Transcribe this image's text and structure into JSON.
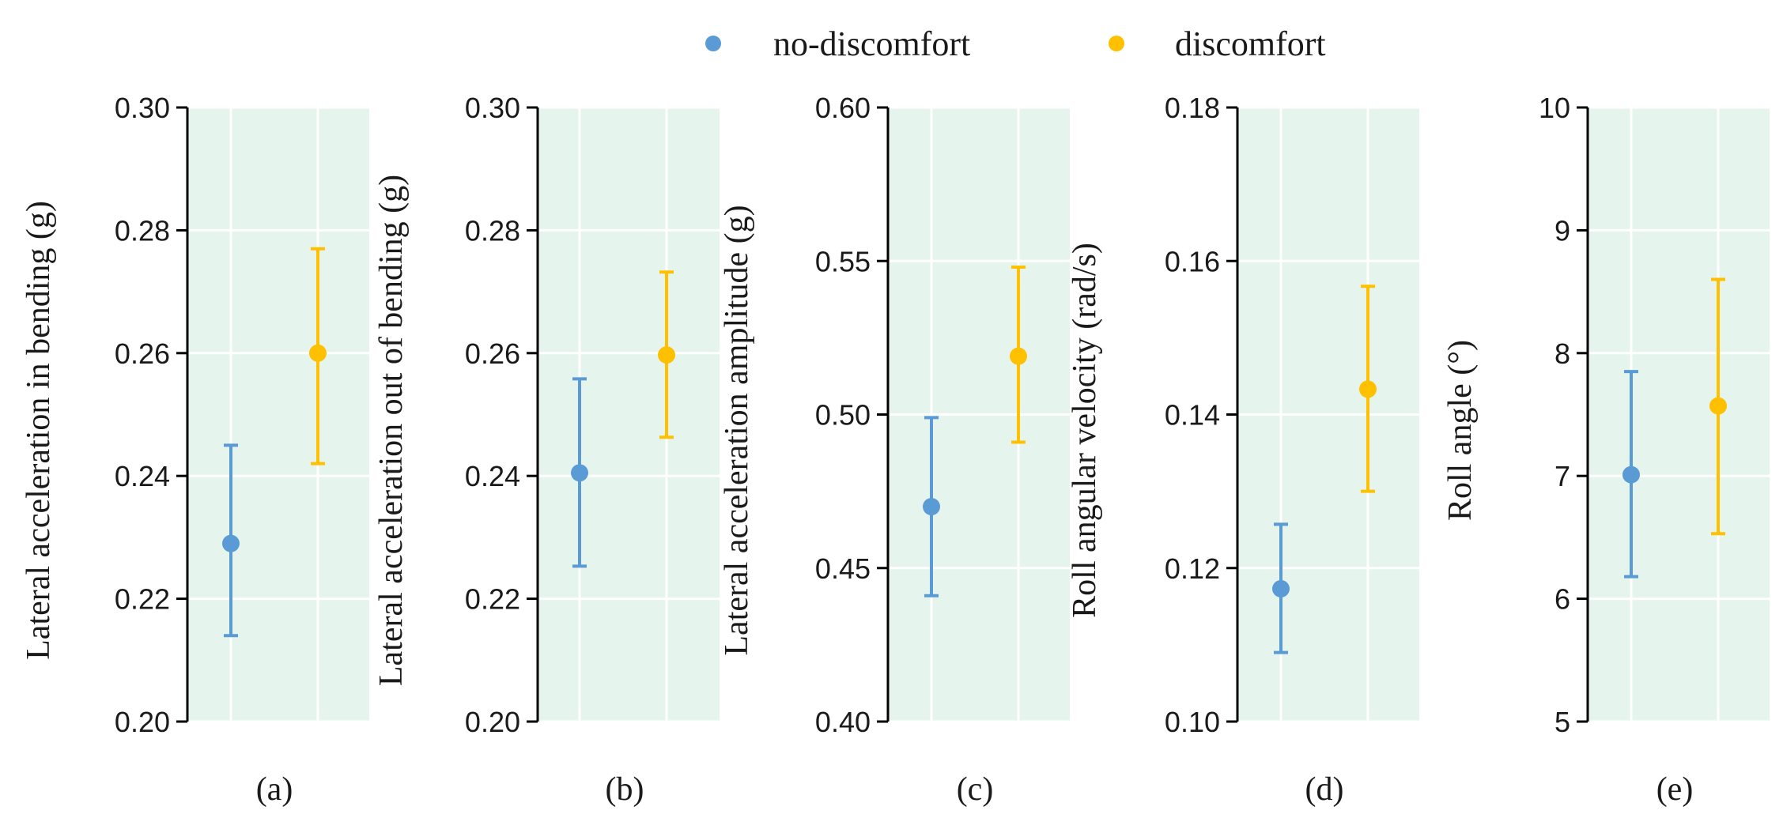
{
  "legend": {
    "position": "top-center",
    "items": [
      {
        "label": "no-discomfort",
        "color": "#5b9bd5"
      },
      {
        "label": "discomfort",
        "color": "#ffc000"
      }
    ]
  },
  "colors": {
    "panel_bg": "#e6f4ee",
    "grid": "#ffffff",
    "axis": "#000000"
  },
  "chart_data": [
    {
      "type": "scatter",
      "panel_label": "(a)",
      "ylabel": "Lateral acceleration in bending (g)",
      "ylim": [
        0.2,
        0.3
      ],
      "yticks": [
        "0.20",
        "0.22",
        "0.24",
        "0.26",
        "0.28",
        "0.30"
      ],
      "grid": true,
      "categories": [
        "no-discomfort",
        "discomfort"
      ],
      "means": [
        0.229,
        0.26
      ],
      "lower": [
        0.214,
        0.242
      ],
      "upper": [
        0.245,
        0.277
      ]
    },
    {
      "type": "scatter",
      "panel_label": "(b)",
      "ylabel": "Lateral acceleration out of bending (g)",
      "ylim": [
        0.2,
        0.3
      ],
      "yticks": [
        "0.20",
        "0.22",
        "0.24",
        "0.26",
        "0.28",
        "0.30"
      ],
      "grid": true,
      "categories": [
        "no-discomfort",
        "discomfort"
      ],
      "means": [
        0.2405,
        0.2597
      ],
      "lower": [
        0.2253,
        0.2463
      ],
      "upper": [
        0.2558,
        0.2732
      ]
    },
    {
      "type": "scatter",
      "panel_label": "(c)",
      "ylabel": "Lateral acceleration amplitude (g)",
      "ylim": [
        0.4,
        0.6
      ],
      "yticks": [
        "0.40",
        "0.45",
        "0.50",
        "0.55",
        "0.60"
      ],
      "grid": true,
      "categories": [
        "no-discomfort",
        "discomfort"
      ],
      "means": [
        0.47,
        0.519
      ],
      "lower": [
        0.441,
        0.491
      ],
      "upper": [
        0.499,
        0.548
      ]
    },
    {
      "type": "scatter",
      "panel_label": "(d)",
      "ylabel": "Roll angular velocity (rad/s)",
      "ylim": [
        0.1,
        0.18
      ],
      "yticks": [
        "0.10",
        "0.12",
        "0.14",
        "0.16",
        "0.18"
      ],
      "grid": true,
      "categories": [
        "no-discomfort",
        "discomfort"
      ],
      "means": [
        0.1173,
        0.1433
      ],
      "lower": [
        0.109,
        0.13
      ],
      "upper": [
        0.1257,
        0.1567
      ]
    },
    {
      "type": "scatter",
      "panel_label": "(e)",
      "ylabel": "Roll angle (°)",
      "ylim": [
        5,
        10
      ],
      "yticks": [
        "5",
        "6",
        "7",
        "8",
        "9",
        "10"
      ],
      "grid": true,
      "categories": [
        "no-discomfort",
        "discomfort"
      ],
      "means": [
        7.01,
        7.57
      ],
      "lower": [
        6.18,
        6.53
      ],
      "upper": [
        7.85,
        8.6
      ]
    }
  ]
}
